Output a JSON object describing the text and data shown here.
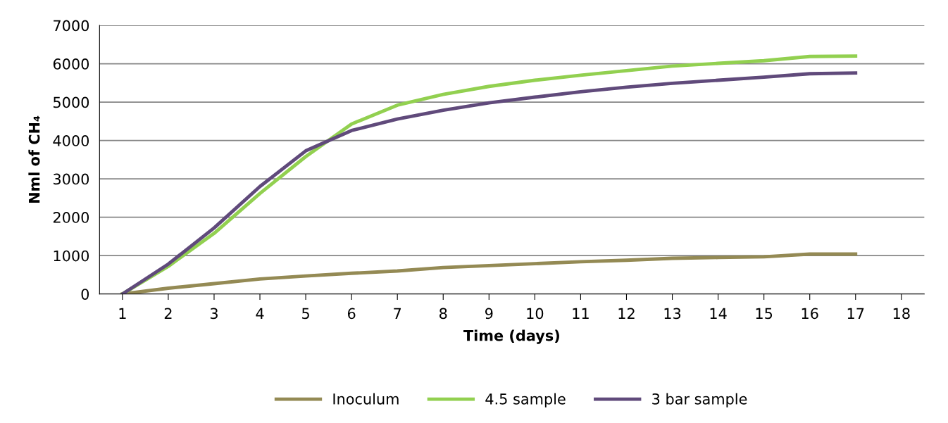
{
  "chart_data": {
    "type": "line",
    "xlabel": "Time (days)",
    "ylabel": "Nml of CH₄",
    "categories": [
      "1",
      "2",
      "3",
      "4",
      "5",
      "6",
      "7",
      "8",
      "9",
      "10",
      "11",
      "12",
      "13",
      "14",
      "15",
      "16",
      "17",
      "18"
    ],
    "series": [
      {
        "name": "Inoculum",
        "color": "#948a54",
        "values": [
          0,
          150,
          270,
          390,
          470,
          540,
          600,
          690,
          740,
          790,
          840,
          880,
          930,
          950,
          970,
          1040,
          1040,
          null
        ]
      },
      {
        "name": "4.5 sample",
        "color": "#92d050",
        "values": [
          0,
          720,
          1580,
          2620,
          3580,
          4430,
          4920,
          5200,
          5410,
          5570,
          5700,
          5820,
          5940,
          6010,
          6080,
          6190,
          6200,
          null
        ]
      },
      {
        "name": "3 bar sample",
        "color": "#604a7b",
        "values": [
          0,
          780,
          1720,
          2800,
          3730,
          4260,
          4560,
          4790,
          4980,
          5130,
          5270,
          5390,
          5490,
          5570,
          5650,
          5740,
          5760,
          null
        ]
      }
    ],
    "ylim": [
      0,
      7000
    ],
    "yticks": [
      0,
      1000,
      2000,
      3000,
      4000,
      5000,
      6000,
      7000
    ],
    "grid": "y",
    "legend": "bottom",
    "marker": "none",
    "line_style": "solid"
  }
}
